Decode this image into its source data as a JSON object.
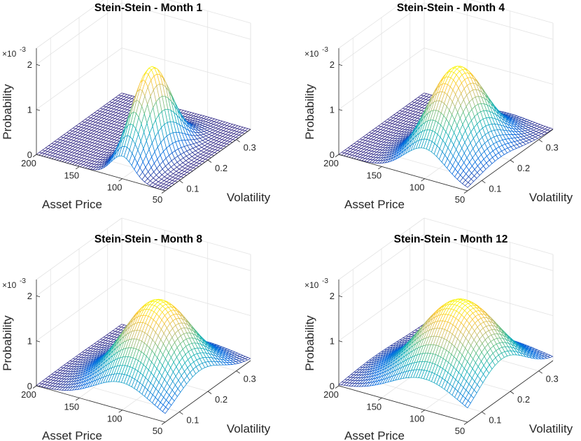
{
  "figure": {
    "background": "#ffffff",
    "colormap": "parula",
    "colormap_stops": [
      "#352a87",
      "#0268e1",
      "#108ed2",
      "#0fb0b6",
      "#56be84",
      "#c0bb6f",
      "#fdc52f",
      "#f9fb0e"
    ]
  },
  "chart_data": [
    {
      "type": "surface",
      "title": "Stein-Stein - Month 1",
      "xlabel": "Asset Price",
      "ylabel": "Volatility",
      "zlabel": "Probability",
      "z_multiplier": "×10",
      "z_exponent": "-3",
      "x_ticks": [
        "50",
        "100",
        "150",
        "200"
      ],
      "y_ticks": [
        "0.1",
        "0.2",
        "0.3"
      ],
      "z_ticks": [
        "0",
        "1",
        "2"
      ],
      "xlim": [
        50,
        200
      ],
      "ylim": [
        0.05,
        0.35
      ],
      "zlim": [
        0,
        0.002
      ],
      "grid": true,
      "peak": {
        "asset_price": 100,
        "volatility": 0.15,
        "probability": 0.00202
      },
      "spread": {
        "asset_price": 13,
        "volatility": 0.06
      }
    },
    {
      "type": "surface",
      "title": "Stein-Stein - Month 4",
      "xlabel": "Asset Price",
      "ylabel": "Volatility",
      "zlabel": "Probability",
      "z_multiplier": "×10",
      "z_exponent": "-3",
      "x_ticks": [
        "50",
        "100",
        "150",
        "200"
      ],
      "y_ticks": [
        "0.1",
        "0.2",
        "0.3"
      ],
      "z_ticks": [
        "0",
        "1",
        "2"
      ],
      "xlim": [
        50,
        200
      ],
      "ylim": [
        0.05,
        0.35
      ],
      "zlim": [
        0,
        0.002
      ],
      "grid": true,
      "peak": {
        "asset_price": 100,
        "volatility": 0.16,
        "probability": 0.00197
      },
      "spread": {
        "asset_price": 24,
        "volatility": 0.075
      }
    },
    {
      "type": "surface",
      "title": "Stein-Stein - Month 8",
      "xlabel": "Asset Price",
      "ylabel": "Volatility",
      "zlabel": "Probability",
      "z_multiplier": "×10",
      "z_exponent": "-3",
      "x_ticks": [
        "50",
        "100",
        "150",
        "200"
      ],
      "y_ticks": [
        "0.1",
        "0.2",
        "0.3"
      ],
      "z_ticks": [
        "0",
        "1",
        "2"
      ],
      "xlim": [
        50,
        200
      ],
      "ylim": [
        0.05,
        0.35
      ],
      "zlim": [
        0,
        0.002
      ],
      "grid": true,
      "peak": {
        "asset_price": 100,
        "volatility": 0.17,
        "probability": 0.00187
      },
      "spread": {
        "asset_price": 33,
        "volatility": 0.08
      }
    },
    {
      "type": "surface",
      "title": "Stein-Stein - Month 12",
      "xlabel": "Asset Price",
      "ylabel": "Volatility",
      "zlabel": "Probability",
      "z_multiplier": "×10",
      "z_exponent": "-3",
      "x_ticks": [
        "50",
        "100",
        "150",
        "200"
      ],
      "y_ticks": [
        "0.1",
        "0.2",
        "0.3"
      ],
      "z_ticks": [
        "0",
        "1",
        "2"
      ],
      "xlim": [
        50,
        200
      ],
      "ylim": [
        0.05,
        0.35
      ],
      "zlim": [
        0,
        0.002
      ],
      "grid": true,
      "peak": {
        "asset_price": 100,
        "volatility": 0.17,
        "probability": 0.00187
      },
      "spread": {
        "asset_price": 40,
        "volatility": 0.085
      }
    }
  ]
}
